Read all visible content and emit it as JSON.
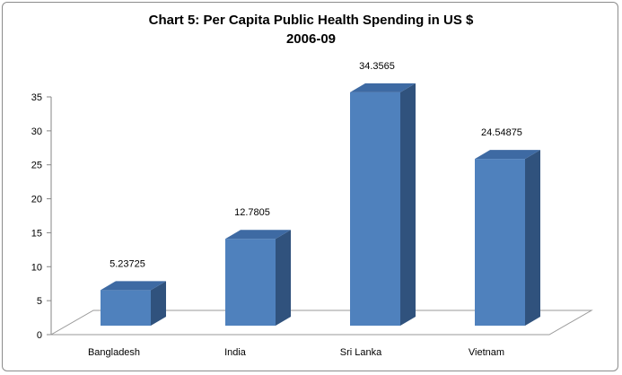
{
  "chart_data": {
    "type": "bar",
    "title": "Chart 5: Per Capita Public Health Spending in US $",
    "subtitle": "2006-09",
    "categories": [
      "Bangladesh",
      "India",
      "Sri Lanka",
      "Vietnam"
    ],
    "values": [
      5.23725,
      12.7805,
      34.3565,
      24.54875
    ],
    "data_labels": [
      "5.23725",
      "12.7805",
      "34.3565",
      "24.54875"
    ],
    "ylim": [
      0,
      35
    ],
    "yticks": [
      "0",
      "5",
      "10",
      "15",
      "20",
      "25",
      "30",
      "35"
    ],
    "xlabel": "",
    "ylabel": "",
    "grid": false,
    "legend": "none",
    "style": "3d-column",
    "colors": {
      "front": "#4f81bd",
      "side": "#30527d",
      "top": "#3e6aa3"
    }
  }
}
